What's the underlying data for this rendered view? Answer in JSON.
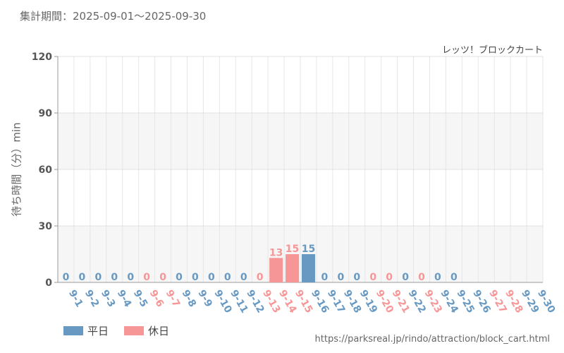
{
  "header": {
    "period_label": "集計期間：2025-09-01～2025-09-30",
    "attraction": "レッツ！ブロックカート"
  },
  "footer": {
    "url": "https://parksreal.jp/rindo/attraction/block_cart.html"
  },
  "colors": {
    "weekday": "#6899c2",
    "holiday": "#f79696"
  },
  "chart_data": {
    "type": "bar",
    "ylabel": "待ち時間（分）min",
    "ylim": [
      0,
      120
    ],
    "yticks": [
      0,
      30,
      60,
      90,
      120
    ],
    "grid": true,
    "legend": "bottom-left",
    "categories": [
      "9-1",
      "9-2",
      "9-3",
      "9-4",
      "9-5",
      "9-6",
      "9-7",
      "9-8",
      "9-9",
      "9-10",
      "9-11",
      "9-12",
      "9-13",
      "9-14",
      "9-15",
      "9-16",
      "9-17",
      "9-18",
      "9-19",
      "9-20",
      "9-21",
      "9-22",
      "9-23",
      "9-24",
      "9-25",
      "9-26",
      "9-27",
      "9-28",
      "9-29",
      "9-30"
    ],
    "day_type": [
      "weekday",
      "weekday",
      "weekday",
      "weekday",
      "weekday",
      "holiday",
      "holiday",
      "weekday",
      "weekday",
      "weekday",
      "weekday",
      "weekday",
      "holiday",
      "holiday",
      "holiday",
      "weekday",
      "weekday",
      "weekday",
      "weekday",
      "holiday",
      "holiday",
      "weekday",
      "holiday",
      "weekday",
      "weekday",
      "weekday",
      "holiday",
      "holiday",
      "weekday",
      "weekday"
    ],
    "values": [
      0,
      0,
      0,
      0,
      0,
      0,
      0,
      0,
      0,
      0,
      0,
      0,
      0,
      13,
      15,
      15,
      0,
      0,
      0,
      0,
      0,
      0,
      0,
      0,
      0,
      null,
      null,
      null,
      null,
      null
    ],
    "series": [
      {
        "name": "平日",
        "type": "weekday"
      },
      {
        "name": "休日",
        "type": "holiday"
      }
    ]
  }
}
